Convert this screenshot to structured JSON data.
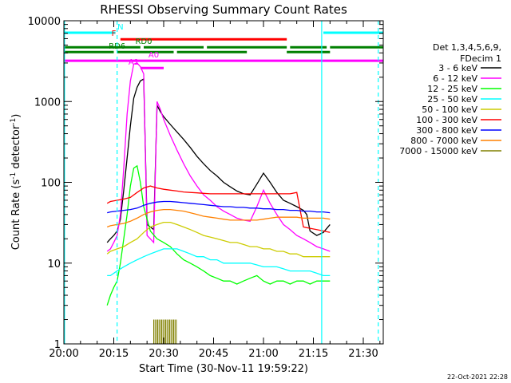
{
  "chart_data": {
    "type": "line",
    "title": "RHESSI Observing Summary Count Rates",
    "xlabel": "Start Time (30-Nov-11 19:59:22)",
    "ylabel_main": "Count Rate (s",
    "ylabel_sup1": "-1",
    "ylabel_mid": " detector",
    "ylabel_sup2": "-1",
    "ylabel_end": ")",
    "x_unit": "minutes after 20:00",
    "xlim": [
      0,
      96
    ],
    "ylim": [
      1,
      10000
    ],
    "yscale": "log",
    "x_ticks": [
      {
        "v": 0,
        "label": "20:00"
      },
      {
        "v": 15,
        "label": "20:15"
      },
      {
        "v": 30,
        "label": "20:30"
      },
      {
        "v": 45,
        "label": "20:45"
      },
      {
        "v": 60,
        "label": "21:00"
      },
      {
        "v": 75,
        "label": "21:15"
      },
      {
        "v": 90,
        "label": "21:30"
      }
    ],
    "y_ticks": [
      {
        "v": 1,
        "label": "1"
      },
      {
        "v": 10,
        "label": "10"
      },
      {
        "v": 100,
        "label": "100"
      },
      {
        "v": 1000,
        "label": "1000"
      },
      {
        "v": 10000,
        "label": "10000"
      }
    ],
    "legend": {
      "placement": "right",
      "header": [
        "Det 1,3,4,5,6,9,",
        "FDecim 1"
      ]
    },
    "series": [
      {
        "name": "3 - 6 keV",
        "color": "#000000",
        "x": [
          13,
          14,
          15,
          16,
          17,
          18,
          19,
          20,
          21,
          22,
          23,
          24,
          25,
          26,
          27,
          28,
          29,
          30,
          32,
          34,
          36,
          38,
          40,
          42,
          44,
          46,
          48,
          50,
          52,
          54,
          56,
          58,
          60,
          62,
          64,
          66,
          68,
          70,
          72,
          73,
          74,
          76,
          78,
          80
        ],
        "y": [
          18,
          20,
          22,
          25,
          35,
          80,
          200,
          500,
          1100,
          1500,
          1800,
          1900,
          30,
          28,
          26,
          900,
          750,
          650,
          520,
          420,
          340,
          270,
          210,
          170,
          140,
          120,
          100,
          88,
          78,
          72,
          70,
          95,
          130,
          100,
          75,
          60,
          55,
          50,
          45,
          40,
          25,
          22,
          24,
          30
        ]
      },
      {
        "name": "6 - 12 keV",
        "color": "#ff00ff",
        "x": [
          13,
          14,
          15,
          16,
          17,
          18,
          19,
          20,
          21,
          22,
          23,
          24,
          25,
          26,
          27,
          28,
          29,
          30,
          32,
          34,
          36,
          38,
          40,
          42,
          44,
          46,
          48,
          50,
          52,
          54,
          56,
          58,
          60,
          62,
          64,
          66,
          68,
          70,
          72,
          74,
          76,
          78,
          80
        ],
        "y": [
          14,
          15,
          18,
          22,
          40,
          150,
          700,
          1800,
          2900,
          3000,
          2700,
          2200,
          22,
          20,
          18,
          1000,
          800,
          600,
          380,
          250,
          170,
          120,
          90,
          70,
          60,
          50,
          44,
          40,
          36,
          34,
          33,
          50,
          80,
          55,
          40,
          30,
          26,
          22,
          20,
          18,
          16,
          15,
          14
        ]
      },
      {
        "name": "12 - 25 keV",
        "color": "#00ff00",
        "x": [
          13,
          14,
          15,
          16,
          17,
          18,
          19,
          20,
          21,
          22,
          23,
          24,
          25,
          26,
          28,
          30,
          32,
          34,
          36,
          38,
          40,
          42,
          44,
          46,
          48,
          50,
          52,
          54,
          56,
          58,
          60,
          62,
          64,
          66,
          68,
          70,
          72,
          74,
          76,
          78,
          80
        ],
        "y": [
          3,
          4,
          5,
          6,
          10,
          20,
          40,
          90,
          150,
          160,
          100,
          50,
          35,
          25,
          20,
          18,
          16,
          13,
          11,
          10,
          9,
          8,
          7,
          6.5,
          6,
          6,
          5.5,
          6,
          6.5,
          7,
          6,
          5.5,
          6,
          6,
          5.5,
          6,
          6,
          5.5,
          6,
          6,
          6
        ]
      },
      {
        "name": "25 - 50 keV",
        "color": "#00ffff",
        "x": [
          13,
          14,
          16,
          18,
          20,
          22,
          24,
          26,
          28,
          30,
          32,
          34,
          36,
          38,
          40,
          42,
          44,
          46,
          48,
          50,
          52,
          54,
          56,
          58,
          60,
          62,
          64,
          66,
          68,
          70,
          72,
          74,
          76,
          78,
          80
        ],
        "y": [
          7,
          7,
          8,
          9,
          10,
          11,
          12,
          13,
          14,
          15,
          15,
          15,
          14,
          13,
          12,
          12,
          11,
          11,
          10,
          10,
          10,
          10,
          10,
          9.5,
          9,
          9,
          9,
          8.5,
          8,
          8,
          8,
          8,
          7.5,
          7,
          7
        ]
      },
      {
        "name": "50 - 100 keV",
        "color": "#cccc00",
        "x": [
          13,
          14,
          16,
          18,
          20,
          22,
          24,
          26,
          28,
          30,
          32,
          34,
          36,
          38,
          40,
          42,
          44,
          46,
          48,
          50,
          52,
          54,
          56,
          58,
          60,
          62,
          64,
          66,
          68,
          70,
          72,
          74,
          76,
          78,
          80
        ],
        "y": [
          13,
          14,
          15,
          16,
          18,
          20,
          24,
          28,
          30,
          32,
          32,
          30,
          28,
          26,
          24,
          22,
          21,
          20,
          19,
          18,
          18,
          17,
          16,
          16,
          15,
          15,
          14,
          14,
          13,
          13,
          12,
          12,
          12,
          12,
          12
        ]
      },
      {
        "name": "100 - 300 keV",
        "color": "#ff0000",
        "x": [
          13,
          14,
          16,
          18,
          20,
          22,
          24,
          26,
          28,
          30,
          32,
          34,
          36,
          38,
          40,
          42,
          44,
          46,
          48,
          50,
          52,
          54,
          56,
          58,
          60,
          62,
          64,
          66,
          68,
          70,
          72,
          74,
          76,
          78,
          80
        ],
        "y": [
          55,
          58,
          60,
          62,
          65,
          75,
          85,
          90,
          85,
          82,
          80,
          78,
          76,
          75,
          74,
          73,
          72,
          72,
          72,
          72,
          72,
          72,
          72,
          72,
          72,
          72,
          72,
          72,
          72,
          75,
          28,
          27,
          26,
          25,
          24
        ]
      },
      {
        "name": "300 - 800 keV",
        "color": "#0000ff",
        "x": [
          13,
          14,
          16,
          18,
          20,
          22,
          24,
          26,
          28,
          30,
          32,
          34,
          36,
          38,
          40,
          42,
          44,
          46,
          48,
          50,
          52,
          54,
          56,
          58,
          60,
          62,
          64,
          66,
          68,
          70,
          72,
          74,
          76,
          78,
          80
        ],
        "y": [
          42,
          43,
          44,
          45,
          46,
          48,
          52,
          55,
          57,
          58,
          58,
          57,
          56,
          55,
          54,
          53,
          52,
          51,
          50,
          50,
          49,
          49,
          48,
          48,
          47,
          47,
          46,
          46,
          45,
          45,
          44,
          44,
          43,
          43,
          42
        ]
      },
      {
        "name": "800 - 7000 keV",
        "color": "#ff8000",
        "x": [
          13,
          14,
          16,
          18,
          20,
          22,
          24,
          26,
          28,
          30,
          32,
          34,
          36,
          38,
          40,
          42,
          44,
          46,
          48,
          50,
          52,
          54,
          56,
          58,
          60,
          62,
          64,
          66,
          68,
          70,
          72,
          74,
          76,
          78,
          80
        ],
        "y": [
          28,
          29,
          30,
          31,
          33,
          36,
          40,
          43,
          45,
          46,
          46,
          45,
          44,
          42,
          40,
          38,
          37,
          36,
          35,
          34,
          34,
          34,
          34,
          34,
          35,
          36,
          37,
          37,
          37,
          37,
          36,
          36,
          36,
          36,
          35
        ]
      },
      {
        "name": "7000 - 15000 keV",
        "color": "#808000",
        "x": [],
        "y": []
      }
    ],
    "flags": [
      {
        "label": "N",
        "color": "#00ffff",
        "label_x": 17,
        "segments": [
          [
            0,
            15.5
          ],
          [
            78,
            96
          ]
        ],
        "level": 7100
      },
      {
        "label": "F",
        "color": "#ff0000",
        "label_x": 15,
        "segments": [
          [
            17,
            67
          ]
        ],
        "level": 5900
      },
      {
        "label": "RD0",
        "color": "#008000",
        "label_x": 24,
        "segments": [
          [
            0,
            23
          ],
          [
            24,
            42
          ],
          [
            43,
            67
          ],
          [
            68,
            79
          ],
          [
            80,
            96
          ]
        ],
        "level": 4700
      },
      {
        "label": "RD6",
        "color": "#008000",
        "label_x": 16,
        "segments": [
          [
            0,
            15
          ],
          [
            16,
            33
          ],
          [
            34,
            55
          ],
          [
            67,
            80
          ]
        ],
        "level": 4100
      },
      {
        "label": "A0",
        "color": "#ff00ff",
        "label_x": 27,
        "segments": [
          [
            0,
            96
          ]
        ],
        "level": 3200
      },
      {
        "label": "A1",
        "color": "#ff00ff",
        "label_x": 21,
        "segments": [
          [
            23,
            30
          ]
        ],
        "level": 2600
      }
    ],
    "vlines": [
      {
        "x": 0.2,
        "color": "#00ffff",
        "style": "solid"
      },
      {
        "x": 16,
        "color": "#00ffff",
        "style": "dashed"
      },
      {
        "x": 77.5,
        "color": "#00ffff",
        "style": "solid"
      },
      {
        "x": 94.5,
        "color": "#00ffff",
        "style": "dashed"
      }
    ],
    "attenuator_bars": {
      "color": "#808000",
      "x_start": 27,
      "x_end": 34,
      "level": 2
    },
    "footer_date": "22-Oct-2021 22:28"
  }
}
